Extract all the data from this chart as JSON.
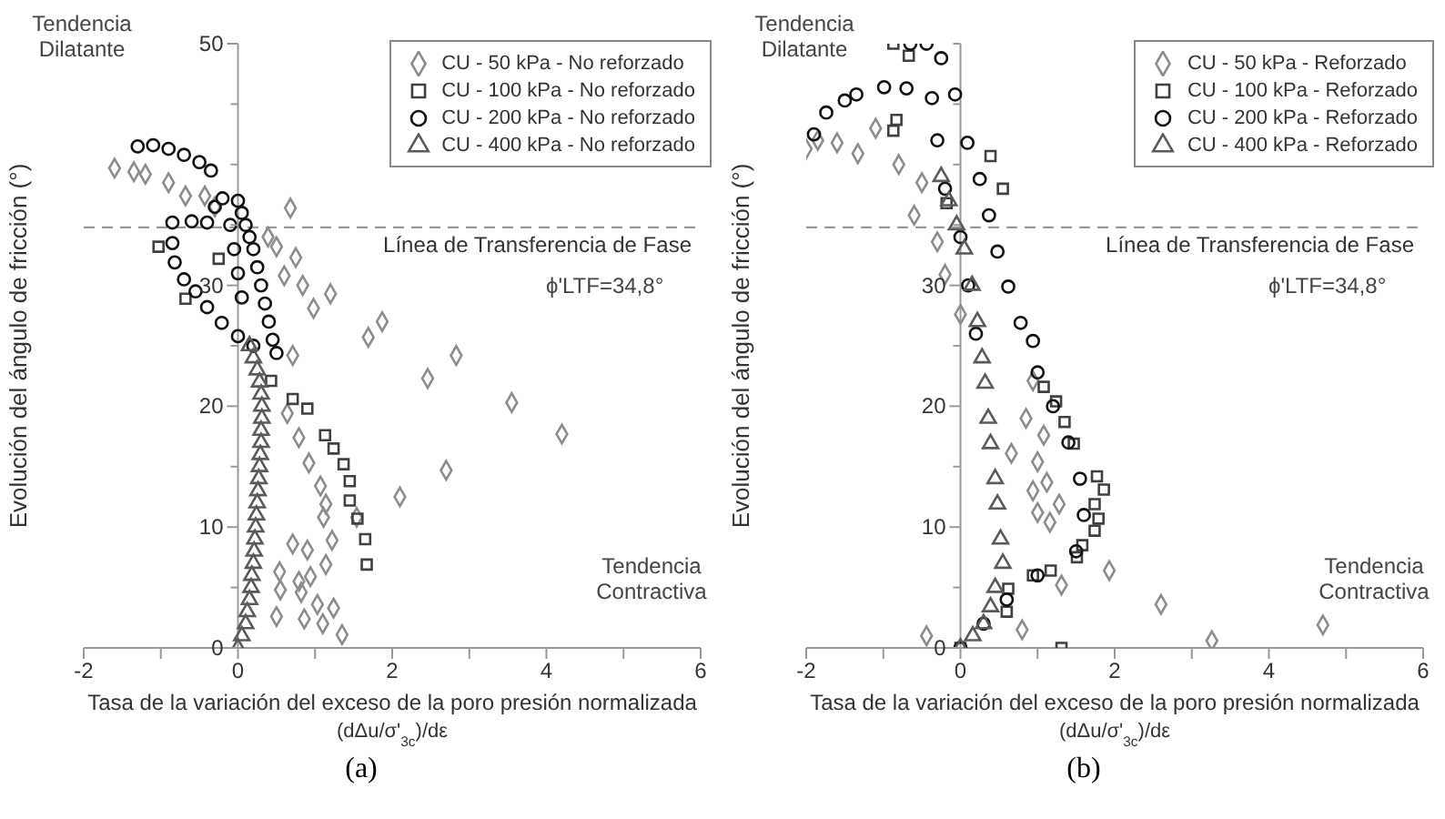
{
  "chart_data": [
    {
      "type": "scatter",
      "title": "(a)",
      "xlabel": "Tasa de la variación del exceso de la poro presión normalizada\n(dΔu/σ'$_{3c}$)/dε",
      "ylabel": "Evolución del ángulo de fricción (°)",
      "xlim": [
        -2,
        6
      ],
      "xticks": [
        -2,
        {
          "value": -1,
          "label": null
        },
        0,
        {
          "value": 1,
          "label": null
        },
        2,
        {
          "value": 3,
          "label": null
        },
        4,
        {
          "value": 5,
          "label": null
        },
        6
      ],
      "ylim": [
        0,
        50
      ],
      "yticks": [
        0,
        {
          "value": 5,
          "label": null
        },
        10,
        {
          "value": 15,
          "label": null
        },
        20,
        {
          "value": 25,
          "label": null
        },
        30,
        {
          "value": 35,
          "label": null
        },
        {
          "value": 40,
          "label": null
        },
        {
          "value": 45,
          "label": null
        },
        50
      ],
      "legend": "top right",
      "ref_lines": [
        {
          "axis": "y",
          "value": 34.8,
          "label": "Línea de Transferencia de Fase",
          "color": "#999999",
          "line_style": "dashed"
        }
      ],
      "annotations": [
        "Tendencia Dilatante",
        "Tendencia Contractiva",
        "ϕ'LTF=34,8°"
      ],
      "series": [
        {
          "name": "CU - 50 kPa - No reforzado",
          "color": "#8c8c8c",
          "marker": "diamond",
          "x": [
            -1.6,
            -1.35,
            -1.2,
            -0.9,
            -0.68,
            -0.43,
            -0.3,
            0.68,
            0.39,
            0.5,
            0.75,
            0.6,
            0.84,
            1.2,
            0.98,
            1.69,
            1.87,
            2.83,
            2.46,
            3.55,
            4.2,
            2.7,
            2.1,
            0.71,
            0.64,
            0.79,
            0.92,
            1.07,
            1.14,
            1.11,
            1.22,
            1.14,
            1.54,
            0.71,
            0.9,
            0.54,
            0.79,
            0.94,
            0.55,
            0.82,
            1.03,
            1.24,
            0.5,
            0.86,
            1.1,
            1.35
          ],
          "values": [
            39.7,
            39.4,
            39.2,
            38.5,
            37.4,
            37.4,
            36.5,
            36.4,
            34,
            33.2,
            32.3,
            30.8,
            30,
            29.3,
            28.1,
            25.7,
            27,
            24.2,
            22.3,
            20.3,
            17.7,
            14.7,
            12.5,
            24.2,
            19.4,
            17.4,
            15.3,
            13.4,
            11.9,
            10.8,
            8.9,
            6.9,
            10.8,
            8.6,
            8.1,
            6.3,
            5.5,
            5.9,
            4.8,
            4.6,
            3.6,
            3.3,
            2.6,
            2.4,
            2,
            1.1
          ]
        },
        {
          "name": "CU - 100 kPa - No reforzado",
          "color": "#404040",
          "marker": "square",
          "x": [
            -1.03,
            -0.68,
            -0.25,
            0.43,
            0.71,
            0.9,
            1.13,
            1.24,
            1.37,
            1.45,
            1.45,
            1.55,
            1.65,
            1.67
          ],
          "values": [
            33.2,
            28.9,
            32.2,
            22.1,
            20.6,
            19.8,
            17.6,
            16.5,
            15.2,
            13.8,
            12.2,
            10.7,
            9,
            6.9
          ]
        },
        {
          "name": "CU - 200 kPa - No reforzado",
          "color": "#111111",
          "marker": "circle",
          "x": [
            -1.3,
            -1.1,
            -0.9,
            -0.7,
            -0.5,
            -0.35,
            0,
            0.05,
            0.1,
            0.15,
            0.2,
            0.25,
            0.3,
            0.35,
            0.4,
            0.45,
            0.5,
            -0.85,
            -0.6,
            -0.4,
            -0.85,
            -0.82,
            -0.7,
            -0.55,
            -0.4,
            -0.21,
            0,
            0.2,
            -0.3,
            -0.2,
            -0.1,
            -0.05,
            0,
            0.05
          ],
          "values": [
            41.5,
            41.6,
            41.3,
            40.8,
            40.2,
            39.5,
            37,
            36,
            35,
            34,
            33,
            31.5,
            30,
            28.5,
            27,
            25.5,
            24.4,
            35.2,
            35.3,
            35.2,
            33.5,
            31.9,
            30.5,
            29.5,
            28.2,
            26.9,
            25.8,
            25,
            36.5,
            37.2,
            35,
            33,
            31,
            29
          ]
        },
        {
          "name": "CU - 400 kPa - No reforzado",
          "color": "#5a5a5a",
          "marker": "triangle",
          "x": [
            0,
            0.05,
            0.1,
            0.12,
            0.15,
            0.17,
            0.18,
            0.2,
            0.21,
            0.22,
            0.23,
            0.24,
            0.25,
            0.26,
            0.27,
            0.28,
            0.29,
            0.3,
            0.3,
            0.31,
            0.31,
            0.3,
            0.28,
            0.25,
            0.2,
            0.15
          ],
          "values": [
            0,
            1,
            2,
            3,
            4,
            5,
            6,
            7,
            8,
            9,
            10,
            11,
            12,
            13,
            14,
            15,
            16,
            17,
            18,
            19,
            20,
            21,
            22,
            23,
            24,
            25
          ]
        }
      ]
    },
    {
      "type": "scatter",
      "title": "(b)",
      "xlabel": "Tasa de la variación del exceso de la poro presión normalizada\n(dΔu/σ'$_{3c}$)/dε",
      "ylabel": "Evolución del ángulo de fricción (°)",
      "xlim": [
        -2,
        6
      ],
      "xticks": [
        -2,
        {
          "value": -1,
          "label": null
        },
        0,
        {
          "value": 1,
          "label": null
        },
        2,
        {
          "value": 3,
          "label": null
        },
        4,
        {
          "value": 5,
          "label": null
        },
        6
      ],
      "ylim": [
        0,
        50
      ],
      "yticks": [
        0,
        {
          "value": 5,
          "label": null
        },
        10,
        {
          "value": 15,
          "label": null
        },
        20,
        {
          "value": 25,
          "label": null
        },
        30,
        {
          "value": 35,
          "label": null
        },
        {
          "value": 40,
          "label": null
        },
        {
          "value": 45,
          "label": null
        },
        {
          "value": 50,
          "label": null
        }
      ],
      "legend": "top right",
      "ref_lines": [
        {
          "axis": "y",
          "value": 34.8,
          "label": "Línea de Transferencia de Fase",
          "color": "#999999",
          "line_style": "dashed"
        }
      ],
      "annotations": [
        "Tendencia Dilatante",
        "Tendencia Contractiva",
        "ϕ'LTF=34,8°"
      ],
      "series": [
        {
          "name": "CU - 50 kPa - Reforzado",
          "color": "#8c8c8c",
          "marker": "diamond",
          "x": [
            -2,
            -1.6,
            -1.33,
            -1.1,
            -0.6,
            -0.3,
            -0.2,
            0,
            0.94,
            0.85,
            1.08,
            0.66,
            1,
            0.94,
            1.12,
            1.28,
            1,
            1.16,
            1.93,
            2.6,
            3.26,
            4.7,
            0.8,
            -0.44,
            1.31,
            -1.85,
            -0.5,
            -0.8
          ],
          "values": [
            41.3,
            41.8,
            40.9,
            43,
            35.8,
            33.6,
            30.9,
            27.6,
            22.1,
            19,
            17.6,
            16.1,
            15.4,
            13,
            13.7,
            11.9,
            11.2,
            10.4,
            6.4,
            3.6,
            0.6,
            1.9,
            1.5,
            1,
            5.2,
            42,
            38.5,
            40
          ]
        },
        {
          "name": "CU - 100 kPa - Reforzado",
          "color": "#404040",
          "marker": "square",
          "x": [
            -0.87,
            -0.67,
            -0.83,
            -0.87,
            0.39,
            0.55,
            -0.18,
            1.08,
            1.24,
            1.35,
            1.47,
            1.77,
            1.86,
            1.74,
            1.79,
            1.74,
            1.58,
            1.51,
            1.17,
            0.94,
            0.62,
            0.6,
            1.31,
            0
          ],
          "values": [
            50,
            49,
            43.7,
            42.8,
            40.7,
            38,
            36.8,
            21.6,
            20.4,
            18.7,
            16.9,
            14.2,
            13.1,
            11.9,
            10.7,
            9.7,
            8.5,
            7.5,
            6.4,
            6,
            4.9,
            3,
            0,
            0
          ]
        },
        {
          "name": "CU - 200 kPa - Reforzado",
          "color": "#111111",
          "marker": "circle",
          "x": [
            -1.9,
            -1.74,
            -1.5,
            -1.35,
            -0.99,
            -0.7,
            -0.65,
            -0.44,
            -0.25,
            -0.07,
            0.09,
            0.25,
            0.37,
            0.48,
            0.62,
            0.78,
            0.94,
            1,
            1.2,
            1.4,
            1.55,
            1.6,
            1.5,
            1,
            0.6,
            0.3,
            0,
            -0.37,
            -0.3,
            -0.2,
            0,
            0.1,
            0.2
          ],
          "values": [
            42.5,
            44.3,
            45.3,
            45.8,
            46.4,
            46.3,
            50,
            50,
            48.8,
            45.8,
            41.8,
            38.8,
            35.8,
            32.8,
            29.9,
            26.9,
            25.4,
            22.8,
            20,
            17,
            14,
            11,
            8,
            6,
            4,
            2,
            0,
            45.5,
            42,
            38,
            34,
            30,
            26
          ]
        },
        {
          "name": "CU - 400 kPa - Reforzado",
          "color": "#5a5a5a",
          "marker": "triangle",
          "x": [
            0,
            0.16,
            0.3,
            0.39,
            0.45,
            0.55,
            0.52,
            0.48,
            0.45,
            0.39,
            0.36,
            0.32,
            0.28,
            0.22,
            0.15,
            0.05,
            -0.05,
            -0.15,
            -0.25
          ],
          "values": [
            0,
            1,
            2,
            3.4,
            5,
            7,
            9,
            11.9,
            14,
            16.9,
            19,
            21.9,
            24,
            27,
            30,
            33,
            35,
            37,
            39
          ]
        }
      ]
    }
  ]
}
